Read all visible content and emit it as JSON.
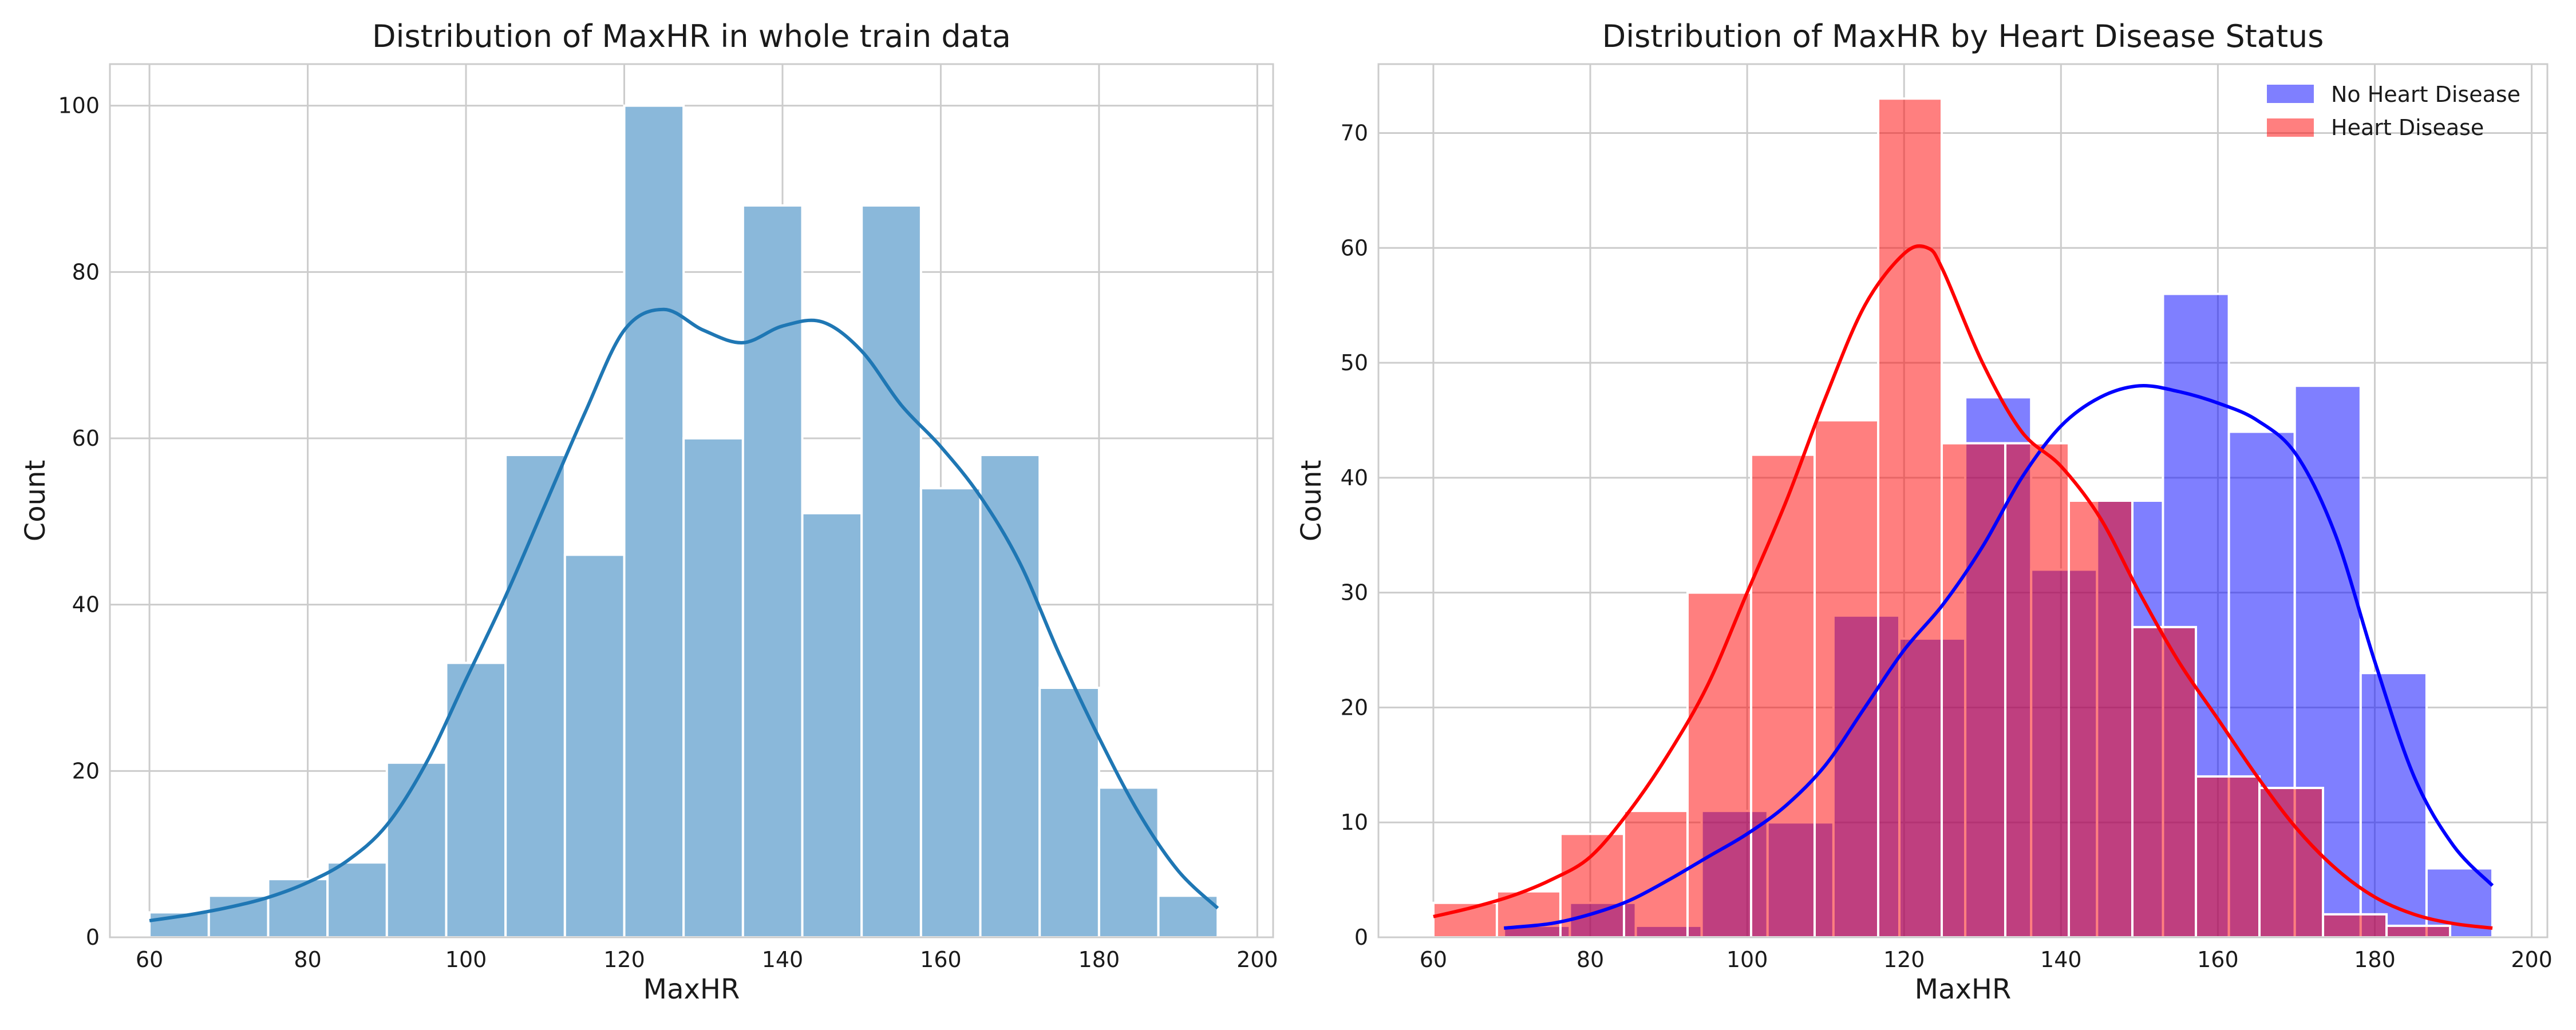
{
  "chart_data": [
    {
      "type": "histogram",
      "title": "Distribution of MaxHR in whole train data",
      "xlabel": "MaxHR",
      "ylabel": "Count",
      "xlim": [
        55,
        202
      ],
      "ylim": [
        0,
        105
      ],
      "xticks": [
        60,
        80,
        100,
        120,
        140,
        160,
        180,
        200
      ],
      "yticks": [
        0,
        20,
        40,
        60,
        80,
        100
      ],
      "grid": true,
      "bin_edges": [
        60,
        67.5,
        75,
        82.5,
        90,
        97.5,
        105,
        112.5,
        120,
        127.5,
        135,
        142.5,
        150,
        157.5,
        165,
        172.5,
        180,
        187.5,
        195
      ],
      "series": [
        {
          "color": "#1f77b4",
          "bar_color": "#8ab8da",
          "counts": [
            3,
            5,
            7,
            9,
            21,
            33,
            58,
            46,
            100,
            60,
            88,
            51,
            88,
            54,
            58,
            30,
            18,
            5
          ],
          "kde": [
            [
              60,
              2
            ],
            [
              65,
              2.7
            ],
            [
              70,
              3.6
            ],
            [
              75,
              4.8
            ],
            [
              80,
              6.6
            ],
            [
              85,
              9.2
            ],
            [
              90,
              13.5
            ],
            [
              95,
              21
            ],
            [
              100,
              31
            ],
            [
              105,
              41
            ],
            [
              110,
              52
            ],
            [
              115,
              63
            ],
            [
              120,
              73
            ],
            [
              125,
              75.5
            ],
            [
              130,
              73
            ],
            [
              135,
              71.5
            ],
            [
              140,
              73.5
            ],
            [
              145,
              74
            ],
            [
              150,
              70.5
            ],
            [
              155,
              64
            ],
            [
              160,
              59
            ],
            [
              165,
              53
            ],
            [
              170,
              45
            ],
            [
              175,
              34
            ],
            [
              180,
              24
            ],
            [
              185,
              15
            ],
            [
              190,
              8
            ],
            [
              195,
              3.5
            ]
          ]
        }
      ]
    },
    {
      "type": "histogram",
      "title": "Distribution of MaxHR by Heart Disease Status",
      "xlabel": "MaxHR",
      "ylabel": "Count",
      "xlim": [
        53,
        202
      ],
      "ylim": [
        0,
        76
      ],
      "xticks": [
        60,
        80,
        100,
        120,
        140,
        160,
        180,
        200
      ],
      "yticks": [
        0,
        10,
        20,
        30,
        40,
        50,
        60,
        70
      ],
      "grid": true,
      "legend": {
        "position": "top-right",
        "entries": [
          "No Heart Disease",
          "Heart Disease"
        ]
      },
      "series": [
        {
          "name": "No Heart Disease",
          "color": "#0000ff",
          "bar_color": "#0000ff",
          "bar_opacity": 0.5,
          "bin_edges": [
            69,
            77.4,
            85.8,
            94.2,
            102.6,
            111,
            119.4,
            127.8,
            136.2,
            144.6,
            153,
            161.4,
            169.8,
            178.2,
            186.6,
            195
          ],
          "counts": [
            1,
            3,
            1,
            11,
            10,
            28,
            26,
            47,
            32,
            38,
            56,
            44,
            48,
            23,
            6
          ],
          "kde": [
            [
              69,
              0.8
            ],
            [
              75,
              1.2
            ],
            [
              80,
              2
            ],
            [
              85,
              3.2
            ],
            [
              90,
              5
            ],
            [
              95,
              7
            ],
            [
              100,
              9
            ],
            [
              105,
              11.5
            ],
            [
              110,
              15
            ],
            [
              115,
              20
            ],
            [
              120,
              25
            ],
            [
              125,
              29
            ],
            [
              130,
              34
            ],
            [
              135,
              40
            ],
            [
              140,
              44.5
            ],
            [
              145,
              47
            ],
            [
              150,
              48
            ],
            [
              155,
              47.5
            ],
            [
              160,
              46.5
            ],
            [
              165,
              45
            ],
            [
              170,
              42
            ],
            [
              175,
              35
            ],
            [
              180,
              24
            ],
            [
              185,
              14
            ],
            [
              190,
              8
            ],
            [
              195,
              4.5
            ]
          ]
        },
        {
          "name": "Heart Disease",
          "color": "#ff0000",
          "bar_color": "#ff0000",
          "bar_opacity": 0.5,
          "bin_edges": [
            60,
            68.1,
            76.2,
            84.3,
            92.4,
            100.5,
            108.6,
            116.7,
            124.8,
            132.9,
            141,
            149.1,
            157.2,
            165.3,
            173.4,
            181.5,
            189.6
          ],
          "counts": [
            3,
            4,
            9,
            11,
            30,
            42,
            45,
            73,
            43,
            43,
            38,
            27,
            14,
            13,
            2,
            1
          ],
          "kde": [
            [
              60,
              1.8
            ],
            [
              65,
              2.6
            ],
            [
              70,
              3.6
            ],
            [
              75,
              5
            ],
            [
              80,
              7
            ],
            [
              85,
              11
            ],
            [
              90,
              16
            ],
            [
              95,
              22
            ],
            [
              100,
              30
            ],
            [
              105,
              38
            ],
            [
              110,
              47
            ],
            [
              115,
              55
            ],
            [
              120,
              59.5
            ],
            [
              123,
              60
            ],
            [
              125,
              58
            ],
            [
              130,
              50
            ],
            [
              135,
              44
            ],
            [
              140,
              41
            ],
            [
              145,
              36.5
            ],
            [
              150,
              30
            ],
            [
              155,
              24
            ],
            [
              160,
              19
            ],
            [
              165,
              14
            ],
            [
              170,
              9.5
            ],
            [
              175,
              6
            ],
            [
              180,
              3.5
            ],
            [
              185,
              2
            ],
            [
              190,
              1.2
            ],
            [
              195,
              0.8
            ]
          ]
        }
      ]
    }
  ]
}
